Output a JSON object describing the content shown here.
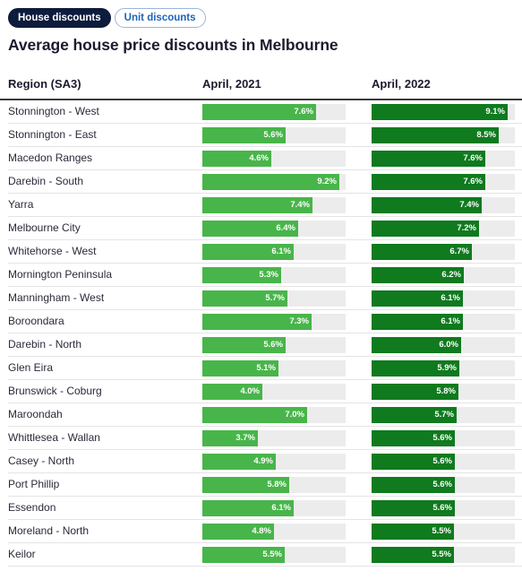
{
  "tabs": {
    "active": "House discounts",
    "inactive": "Unit discounts"
  },
  "title": "Average house price discounts in Melbourne",
  "columns": {
    "region": "Region (SA3)",
    "y1": "April, 2021",
    "y2": "April, 2022"
  },
  "colors": {
    "bar_2021": "#48b54a",
    "bar_2022": "#0f7a1e",
    "track": "#ececec"
  },
  "chart_data": {
    "type": "table",
    "title": "Average house price discounts in Melbourne",
    "categories": [
      "Stonnington - West",
      "Stonnington - East",
      "Macedon Ranges",
      "Darebin - South",
      "Yarra",
      "Melbourne City",
      "Whitehorse - West",
      "Mornington Peninsula",
      "Manningham - West",
      "Boroondara",
      "Darebin - North",
      "Glen Eira",
      "Brunswick - Coburg",
      "Maroondah",
      "Whittlesea - Wallan",
      "Casey - North",
      "Port Phillip",
      "Essendon",
      "Moreland - North",
      "Keilor"
    ],
    "series": [
      {
        "name": "April, 2021",
        "values": [
          7.6,
          5.6,
          4.6,
          9.2,
          7.4,
          6.4,
          6.1,
          5.3,
          5.7,
          7.3,
          5.6,
          5.1,
          4.0,
          7.0,
          3.7,
          4.9,
          5.8,
          6.1,
          4.8,
          5.5
        ]
      },
      {
        "name": "April, 2022",
        "values": [
          9.1,
          8.5,
          7.6,
          7.6,
          7.4,
          7.2,
          6.7,
          6.2,
          6.1,
          6.1,
          6.0,
          5.9,
          5.8,
          5.7,
          5.6,
          5.6,
          5.6,
          5.6,
          5.5,
          5.5
        ]
      }
    ],
    "value_suffix": "%",
    "xlim": [
      0,
      9.6
    ]
  }
}
